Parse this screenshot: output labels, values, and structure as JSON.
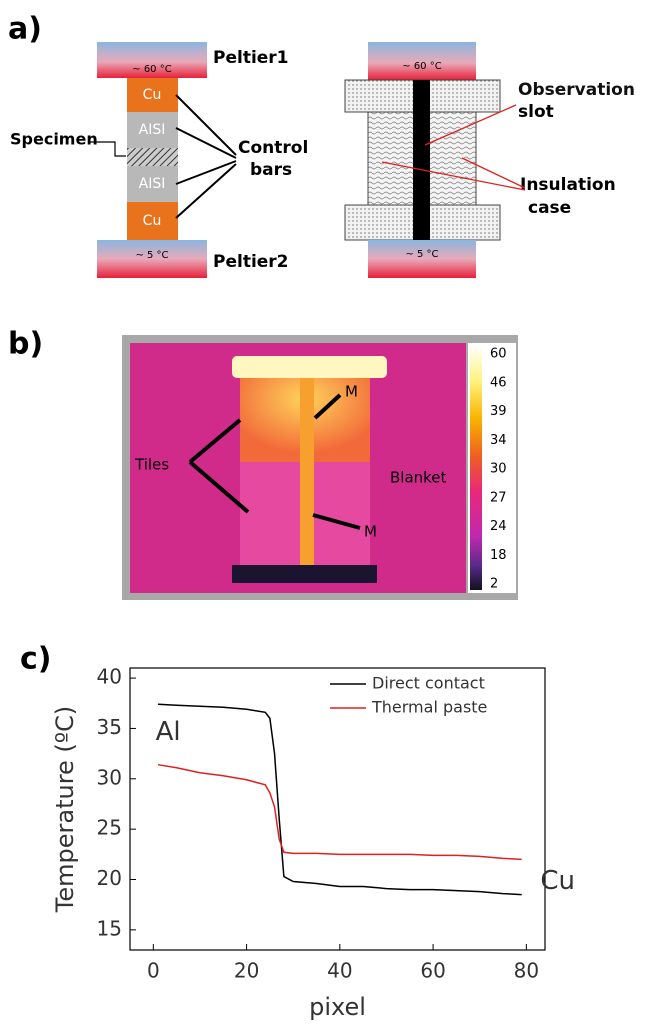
{
  "panel_a": {
    "label": "a)",
    "left": {
      "top_temp": "~ 60 °C",
      "bottom_temp": "~ 5 °C",
      "blocks": [
        "Cu",
        "AISI",
        "AISI",
        "Cu"
      ],
      "peltier1": "Peltier1",
      "peltier2": "Peltier2",
      "specimen": "Specimen",
      "control": [
        "Control",
        "bars"
      ]
    },
    "right": {
      "top_temp": "~ 60 °C",
      "bottom_temp": "~ 5 °C",
      "observation": [
        "Observation",
        "slot"
      ],
      "insulation": [
        "Insulation",
        "case"
      ]
    }
  },
  "panel_b": {
    "label": "b)",
    "colorbar": [
      60,
      46,
      39,
      34,
      30,
      27,
      24,
      18,
      2
    ],
    "tiles": "Tiles",
    "blanket": "Blanket",
    "markers": [
      "M",
      "M"
    ]
  },
  "chart_data": {
    "type": "line",
    "label": "c)",
    "x_label": "pixel",
    "y_label": "Temperature (ºC)",
    "annotations": [
      "Al",
      "Cu"
    ],
    "x": [
      1,
      5,
      10,
      15,
      20,
      24,
      25,
      26,
      27,
      28,
      30,
      35,
      40,
      45,
      50,
      55,
      60,
      65,
      70,
      75,
      79
    ],
    "series": [
      {
        "name": "Direct contact",
        "color": "#000000",
        "values": [
          37.4,
          37.3,
          37.2,
          37.1,
          36.9,
          36.6,
          36.0,
          32.5,
          26,
          20.3,
          19.8,
          19.6,
          19.3,
          19.3,
          19.1,
          19.0,
          19.0,
          18.9,
          18.8,
          18.6,
          18.5
        ]
      },
      {
        "name": "Thermal paste",
        "color": "#e02020",
        "values": [
          31.4,
          31.1,
          30.6,
          30.3,
          29.9,
          29.4,
          28.6,
          27.2,
          24,
          22.7,
          22.6,
          22.6,
          22.5,
          22.5,
          22.5,
          22.5,
          22.4,
          22.4,
          22.3,
          22.1,
          22.0
        ]
      }
    ],
    "xlim": [
      -5,
      84
    ],
    "ylim": [
      13,
      41
    ],
    "xticks": [
      0,
      20,
      40,
      60,
      80
    ],
    "yticks": [
      15,
      20,
      25,
      30,
      35,
      40
    ],
    "legend": "top-right"
  }
}
